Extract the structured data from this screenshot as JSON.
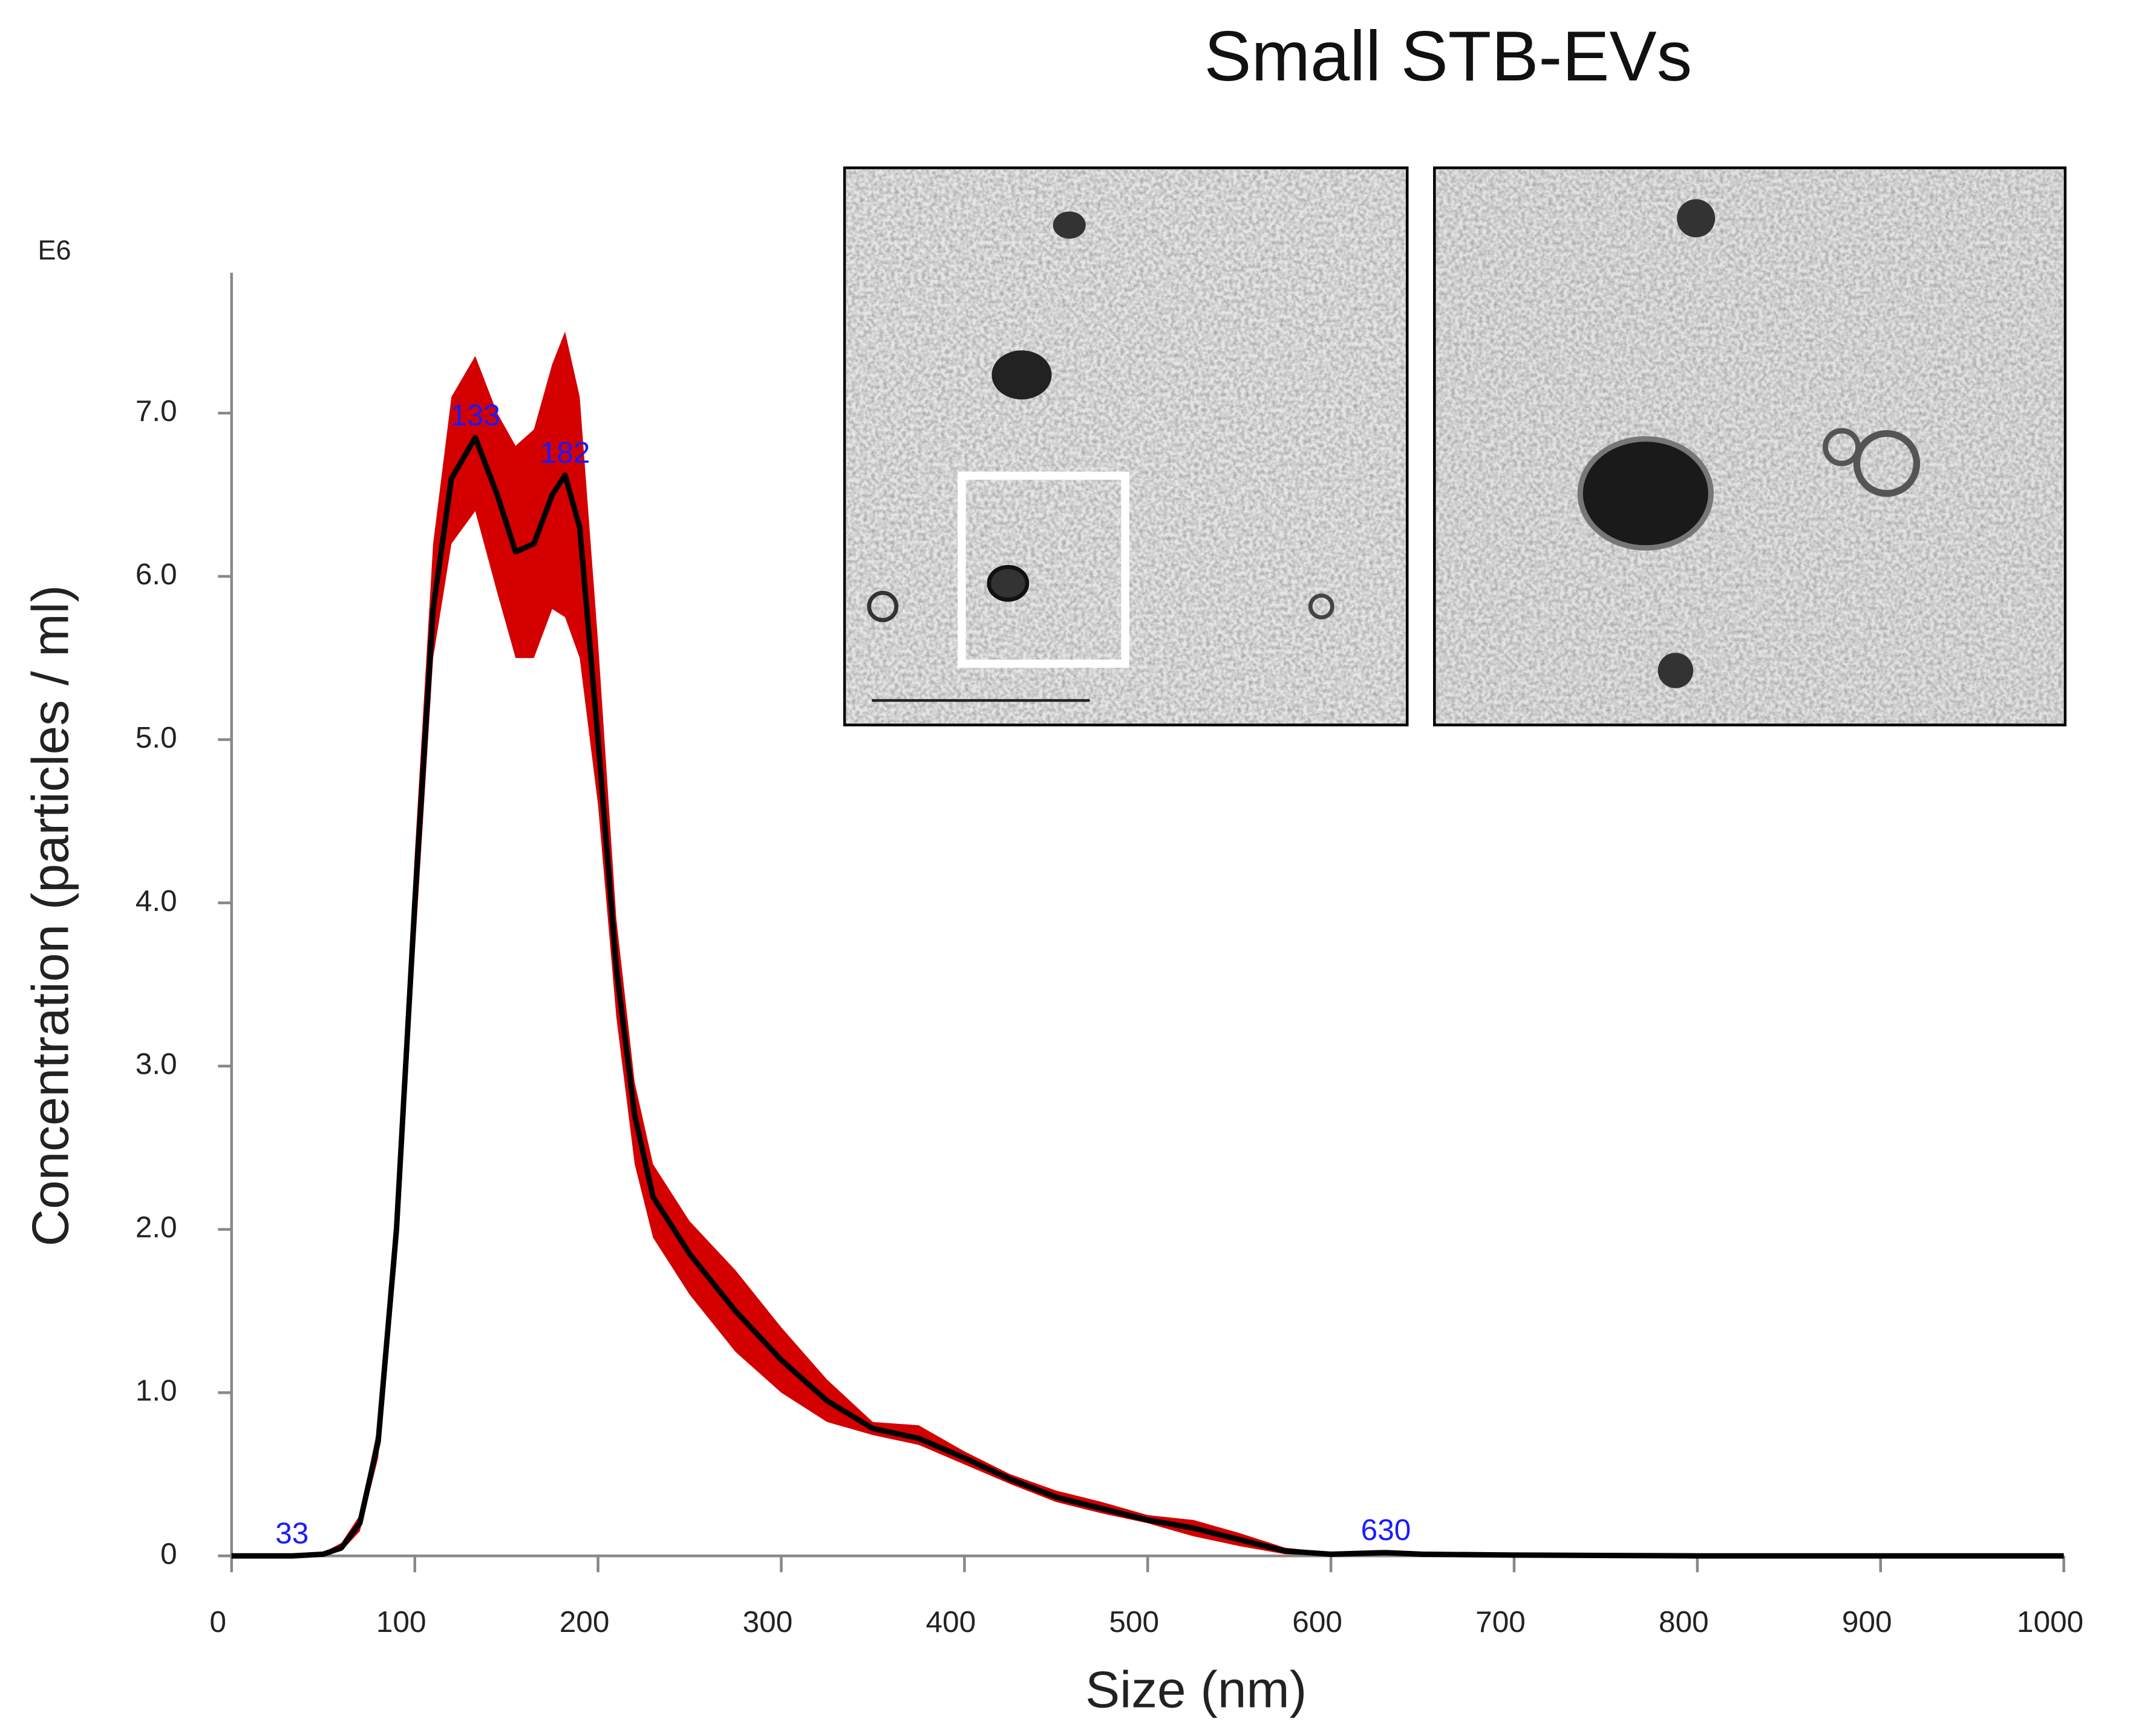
{
  "chart_data": {
    "type": "line",
    "title": "Small STB-EVs",
    "x_label": "Size (nm)",
    "y_label": "Concentration (particles / ml)",
    "y_multiplier": "E6",
    "x": [
      0,
      33,
      50,
      60,
      70,
      80,
      90,
      100,
      110,
      120,
      133,
      145,
      155,
      165,
      175,
      182,
      190,
      200,
      210,
      220,
      230,
      250,
      275,
      300,
      325,
      350,
      375,
      400,
      425,
      450,
      475,
      500,
      525,
      550,
      575,
      600,
      630,
      650,
      700,
      800,
      900,
      1000
    ],
    "series": [
      {
        "color": "#000000",
        "values": [
          0,
          0,
          0.01,
          0.05,
          0.2,
          0.7,
          2.0,
          4.0,
          5.8,
          6.6,
          6.85,
          6.5,
          6.15,
          6.2,
          6.5,
          6.62,
          6.3,
          5.0,
          3.6,
          2.7,
          2.2,
          1.85,
          1.5,
          1.2,
          0.95,
          0.78,
          0.72,
          0.6,
          0.47,
          0.36,
          0.29,
          0.22,
          0.17,
          0.1,
          0.03,
          0.01,
          0.02,
          0.01,
          0.005,
          0,
          0,
          0
        ]
      }
    ],
    "band": {
      "color": "#d40000",
      "lower": [
        0,
        0,
        0,
        0.03,
        0.15,
        0.6,
        1.8,
        3.7,
        5.5,
        6.2,
        6.4,
        5.9,
        5.5,
        5.5,
        5.8,
        5.75,
        5.5,
        4.6,
        3.3,
        2.4,
        1.95,
        1.6,
        1.25,
        1.0,
        0.82,
        0.74,
        0.68,
        0.56,
        0.44,
        0.33,
        0.26,
        0.2,
        0.12,
        0.06,
        0.01,
        0,
        0.01,
        0.005,
        0,
        0,
        0,
        0
      ],
      "upper": [
        0,
        0,
        0.02,
        0.08,
        0.25,
        0.8,
        2.2,
        4.3,
        6.2,
        7.1,
        7.35,
        7.0,
        6.8,
        6.9,
        7.3,
        7.5,
        7.1,
        5.6,
        3.9,
        2.9,
        2.4,
        2.05,
        1.75,
        1.4,
        1.08,
        0.82,
        0.8,
        0.64,
        0.5,
        0.4,
        0.33,
        0.25,
        0.22,
        0.14,
        0.05,
        0.02,
        0.03,
        0.015,
        0.008,
        0,
        0,
        0
      ]
    },
    "peak_labels": [
      33,
      133,
      182,
      630
    ],
    "peak_label_color": "#1a1aff",
    "xlim": [
      0,
      1000
    ],
    "ylim": [
      0,
      7.86
    ],
    "xticks": [
      0,
      100,
      200,
      300,
      400,
      500,
      600,
      700,
      800,
      900,
      1000
    ],
    "yticks": [
      0,
      {
        "value": 1,
        "label": "1.0"
      },
      {
        "value": 2,
        "label": "2.0"
      },
      {
        "value": 3,
        "label": "3.0"
      },
      {
        "value": 4,
        "label": "4.0"
      },
      {
        "value": 5,
        "label": "5.0"
      },
      {
        "value": 6,
        "label": "6.0"
      },
      {
        "value": 7,
        "label": "7.0"
      }
    ]
  }
}
